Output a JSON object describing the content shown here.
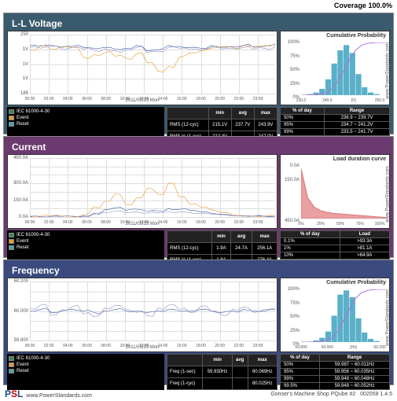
{
  "header": {
    "coverage_label": "Coverage",
    "coverage_value": "100.0%"
  },
  "panels": {
    "voltage": {
      "title": "L-L Voltage",
      "main_chart": {
        "ylim": [
          185,
          250
        ],
        "yticks": [
          250,
          "1V",
          "1V",
          "1V",
          185
        ],
        "xticks": [
          "00:00",
          "02:00",
          "04:00",
          "06:00",
          "08:00",
          "10:00",
          "12:00",
          "14:00",
          "16:00",
          "18:00",
          "20:00",
          "22:00",
          "23:59"
        ],
        "xlabel": "2011/05/23  Mon",
        "bg": "#ffffff",
        "grid": "#dddddd",
        "series": [
          {
            "color": "#3a5aa8",
            "name": "iec",
            "data": [
              238,
              237,
              238,
              236,
              237,
              236,
              235,
              236,
              234,
              235,
              238,
              232,
              233,
              238,
              237,
              236,
              235,
              238,
              236,
              237,
              238,
              236,
              237,
              239
            ]
          },
          {
            "color": "#e89a30",
            "name": "event",
            "data": [
              233,
              238,
              234,
              237,
              236,
              225,
              228,
              230,
              226,
              224,
              229,
              219,
              210,
              215,
              225,
              230,
              232,
              235,
              237,
              236,
              238,
              237,
              238,
              240
            ]
          },
          {
            "color": "#9090c0",
            "name": "rms",
            "data": [
              236,
              235,
              237,
              234,
              236,
              234,
              233,
              234,
              232,
              233,
              236,
              230,
              231,
              236,
              235,
              234,
              233,
              236,
              234,
              235,
              236,
              234,
              235,
              237
            ]
          }
        ]
      },
      "side_chart": {
        "title": "Cumulative Probability",
        "watermark": "www.PowerStandards.com",
        "type": "histogram",
        "color": "#5ab0c8",
        "line": "#b070d8",
        "xlim": [
          230,
          250
        ],
        "xticks": [
          "230.0",
          "240.0",
          "[V]",
          "250.0"
        ],
        "ylim": [
          0,
          100
        ],
        "yticks": [
          "0%",
          "25%",
          "50%",
          "75%",
          "100%"
        ],
        "bars": [
          0,
          2,
          5,
          12,
          30,
          60,
          85,
          95,
          80,
          40,
          15,
          5,
          2,
          0
        ]
      },
      "legend": [
        {
          "color": "#3a8a50",
          "label": "IEC 61000-4-30"
        },
        {
          "color": "#e89a30",
          "label": "Event"
        },
        {
          "color": "#4aa",
          "label": "Reset"
        }
      ],
      "stats": {
        "headers": [
          "",
          "min",
          "avg",
          "max"
        ],
        "rows": [
          [
            "RMS (12-cyc)",
            "215.1V",
            "237.7V",
            "243.9V"
          ],
          [
            "RMS ½ (1-cyc)",
            "212.4V",
            "",
            "247.0V"
          ]
        ]
      },
      "prob": {
        "headers": [
          "% of day",
          "Range"
        ],
        "rows": [
          [
            "50%",
            "236.9 ~ 239.7V"
          ],
          [
            "95%",
            "234.7 ~ 241.2V"
          ],
          [
            "99%",
            "233.5 ~ 241.7V"
          ],
          [
            "99.5%",
            "233.3 ~ 242.1V"
          ]
        ]
      }
    },
    "current": {
      "title": "Current",
      "main_chart": {
        "ylim": [
          0,
          450
        ],
        "yticks": [
          "450.0A",
          "",
          "",
          "300.0A",
          "",
          "150.0A",
          "",
          "0.0A"
        ],
        "xticks": [
          "00:00",
          "02:00",
          "04:00",
          "06:00",
          "08:00",
          "10:00",
          "12:00",
          "14:00",
          "16:00",
          "18:00",
          "20:00",
          "22:00",
          "23:59"
        ],
        "xlabel": "2011/05/23  Mon",
        "series": [
          {
            "color": "#3a5aa8",
            "data": [
              5,
              4,
              6,
              5,
              4,
              8,
              30,
              55,
              70,
              50,
              60,
              45,
              48,
              65,
              58,
              52,
              40,
              30,
              20,
              12,
              8,
              6,
              5,
              5
            ]
          },
          {
            "color": "#e89a30",
            "data": [
              8,
              6,
              10,
              8,
              7,
              15,
              80,
              120,
              180,
              95,
              145,
              220,
              175,
              260,
              155,
              95,
              75,
              55,
              32,
              18,
              12,
              10,
              8,
              8
            ]
          },
          {
            "color": "#9090c0",
            "data": [
              3,
              3,
              4,
              3,
              3,
              5,
              20,
              35,
              45,
              32,
              40,
              30,
              32,
              42,
              38,
              34,
              28,
              22,
              15,
              9,
              6,
              5,
              4,
              4
            ]
          }
        ]
      },
      "side_chart": {
        "title": "Load duration curve",
        "watermark": "www.PowerStandards.com",
        "type": "area",
        "color": "#d87878",
        "fill": "#e8a0a0",
        "xlim": [
          0,
          100
        ],
        "xticks": [
          "0%",
          "25%",
          "50%",
          "75%",
          "100%"
        ],
        "ylim": [
          0,
          450
        ],
        "yticks": [
          "450.0A",
          "",
          "",
          "",
          "",
          "",
          "150.0A",
          "",
          "0.0A"
        ],
        "curve": [
          95,
          40,
          22,
          15,
          12,
          10,
          9,
          8,
          7,
          6,
          5,
          4,
          3,
          2
        ]
      },
      "legend": [
        {
          "color": "#3a8a50",
          "label": "IEC 61000-4-30"
        },
        {
          "color": "#e89a30",
          "label": "Event"
        },
        {
          "color": "#4aa",
          "label": "Reset"
        }
      ],
      "stats": {
        "headers": [
          "",
          "min",
          "avg",
          "max"
        ],
        "rows": [
          [
            "RMS (12-cyc)",
            "1.9A",
            "24.7A",
            "256.1A"
          ],
          [
            "RMS ½ (1-cyc)",
            "1.8A",
            "",
            "276.4A"
          ]
        ]
      },
      "prob": {
        "headers": [
          "% of day",
          "Load"
        ],
        "rows": [
          [
            "0.1%",
            ">93.3A"
          ],
          [
            "1%",
            ">81.1A"
          ],
          [
            "10%",
            ">64.9A"
          ],
          [
            "50%",
            ">24.3A"
          ]
        ]
      }
    },
    "frequency": {
      "title": "Frequency",
      "main_chart": {
        "ylim": [
          59.8,
          60.2
        ],
        "yticks": [
          "60.200",
          "",
          "",
          "60.000",
          "",
          "",
          "59.800"
        ],
        "xticks": [
          "00:00",
          "02:00",
          "04:00",
          "06:00",
          "08:00",
          "10:00",
          "12:00",
          "14:00",
          "16:00",
          "18:00",
          "20:00",
          "22:00",
          "23:59"
        ],
        "xlabel": "2011/05/23  Mon",
        "series": [
          {
            "color": "#3a5aa8",
            "data": [
              60.0,
              60.01,
              59.99,
              60.0,
              60.01,
              60.0,
              59.99,
              60.0,
              60.01,
              60.0,
              60.0,
              59.99,
              60.0,
              60.01,
              60.0,
              60.0,
              60.01,
              60.0,
              59.99,
              60.0,
              60.01,
              60.0,
              60.0,
              60.01
            ]
          },
          {
            "color": "#9090c0",
            "data": [
              60.02,
              60.04,
              59.97,
              60.01,
              60.03,
              59.98,
              59.96,
              60.02,
              60.04,
              60.01,
              59.99,
              59.97,
              60.02,
              60.04,
              60.01,
              59.99,
              60.03,
              60.0,
              59.97,
              60.01,
              60.03,
              59.99,
              60.01,
              60.02
            ]
          }
        ]
      },
      "side_chart": {
        "title": "Cumulative Probability",
        "watermark": "www.PowerStandards.com",
        "type": "histogram",
        "color": "#5ab0c8",
        "line": "#b070d8",
        "xlim": [
          59.8,
          60.2
        ],
        "xticks": [
          "59.800",
          "60.000",
          "[Hz]",
          "60.200"
        ],
        "ylim": [
          0,
          100
        ],
        "yticks": [
          "0%",
          "25%",
          "50%",
          "75%",
          "100%"
        ],
        "bars": [
          0,
          1,
          3,
          8,
          20,
          50,
          90,
          98,
          85,
          45,
          18,
          6,
          2,
          0
        ]
      },
      "legend": [
        {
          "color": "#3a8a50",
          "label": "IEC 61000-4-30"
        },
        {
          "color": "#e89a30",
          "label": "Event"
        },
        {
          "color": "#4aa",
          "label": "Reset"
        }
      ],
      "stats": {
        "headers": [
          "",
          "min",
          "avg",
          "max"
        ],
        "rows": [
          [
            "Freq (1-sec)",
            "59.930Hz",
            "",
            "60.069Hz"
          ],
          [
            "Freq (1-cyc)",
            "",
            "",
            "60.025Hz"
          ]
        ]
      },
      "prob": {
        "headers": [
          "% of day",
          "Range"
        ],
        "rows": [
          [
            "50%",
            "59.987 ~ 60.011Hz"
          ],
          [
            "95%",
            "59.956 ~ 60.035Hz"
          ],
          [
            "99%",
            "59.948 ~ 60.048Hz"
          ],
          [
            "99.5%",
            "59.948 ~ 60.052Hz"
          ]
        ]
      }
    }
  },
  "footer": {
    "logo": "PSL",
    "url": "www.PowerStandards.com",
    "device": "Gonser's Machine Shop PQube #2",
    "id": "002058  1.4.5"
  }
}
